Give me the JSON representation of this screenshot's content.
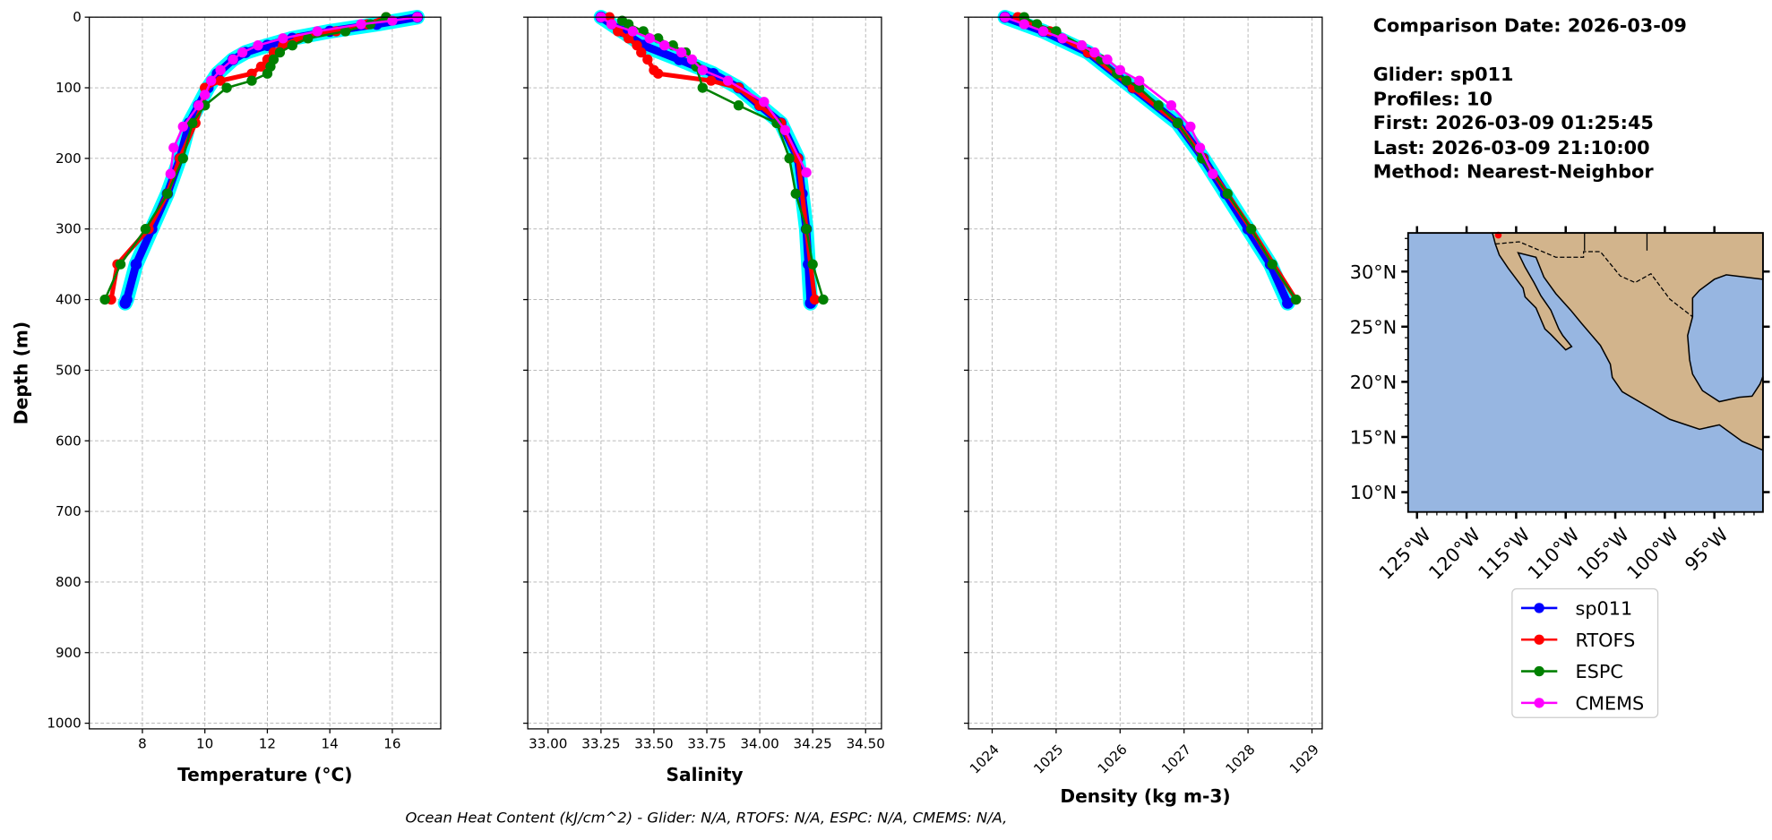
{
  "info": {
    "comparison_date": "Comparison Date: 2026-03-09",
    "glider": "Glider: sp011",
    "profiles": "Profiles: 10",
    "first": "First: 2026-03-09 01:25:45",
    "last": "Last: 2026-03-09 21:10:00",
    "method": "Method: Nearest-Neighbor"
  },
  "caption": "Ocean Heat Content (kJ/cm^2) - Glider: N/A,  RTOFS: N/A,  ESPC: N/A,  CMEMS: N/A,",
  "colors": {
    "sp011": "#0000ff",
    "RTOFS": "#ff0000",
    "ESPC": "#008000",
    "CMEMS": "#ff00ff",
    "glider_profiles": "#00ffff",
    "land": "#d2b48c",
    "ocean": "#97b6e1"
  },
  "legend": [
    "sp011",
    "RTOFS",
    "ESPC",
    "CMEMS"
  ],
  "chart_data": [
    {
      "type": "line",
      "id": "temperature",
      "xlabel": "Temperature (°C)",
      "ylabel": "Depth (m)",
      "xlim": [
        6.3,
        17.55
      ],
      "ylim": [
        1008,
        0
      ],
      "xticks": [
        8,
        10,
        12,
        14,
        16
      ],
      "yticks": [
        0,
        100,
        200,
        300,
        400,
        500,
        600,
        700,
        800,
        900,
        1000
      ],
      "grid": true,
      "series": [
        {
          "name": "sp011",
          "depth": [
            0,
            10,
            20,
            30,
            40,
            50,
            60,
            80,
            100,
            125,
            150,
            200,
            250,
            300,
            350,
            400,
            405
          ],
          "values": [
            16.8,
            15.5,
            14,
            12.8,
            12,
            11.3,
            10.9,
            10.4,
            10.1,
            9.8,
            9.5,
            9.2,
            8.8,
            8.3,
            7.8,
            7.5,
            7.45
          ]
        },
        {
          "name": "RTOFS",
          "depth": [
            0,
            10,
            20,
            30,
            40,
            50,
            60,
            70,
            80,
            90,
            100,
            125,
            150,
            200,
            250,
            300,
            350,
            400
          ],
          "values": [
            15.8,
            15.2,
            14.2,
            13,
            12.5,
            12.2,
            12,
            11.8,
            11.5,
            10.5,
            10,
            9.9,
            9.7,
            9.2,
            8.8,
            8.2,
            7.2,
            7.0
          ]
        },
        {
          "name": "ESPC",
          "depth": [
            0,
            10,
            20,
            30,
            40,
            50,
            60,
            70,
            80,
            90,
            100,
            125,
            150,
            200,
            250,
            300,
            350,
            400
          ],
          "values": [
            15.8,
            15.3,
            14.5,
            13.3,
            12.8,
            12.4,
            12.2,
            12.1,
            12.0,
            11.5,
            10.7,
            10.0,
            9.6,
            9.3,
            8.8,
            8.1,
            7.3,
            6.8
          ]
        },
        {
          "name": "CMEMS",
          "depth": [
            0,
            5,
            10,
            20,
            30,
            40,
            50,
            60,
            75,
            90,
            110,
            125,
            155,
            185,
            222
          ],
          "values": [
            16.8,
            16,
            15,
            13.6,
            12.5,
            11.7,
            11.2,
            10.9,
            10.5,
            10.2,
            10.0,
            9.8,
            9.3,
            9.0,
            8.9
          ]
        }
      ]
    },
    {
      "type": "line",
      "id": "salinity",
      "xlabel": "Salinity",
      "ylabel": "",
      "xlim": [
        32.904,
        34.575
      ],
      "ylim": [
        1008,
        0
      ],
      "xticks": [
        "33.00",
        "33.25",
        "33.50",
        "33.75",
        "34.00",
        "34.25",
        "34.50"
      ],
      "yticks": [
        0,
        100,
        200,
        300,
        400,
        500,
        600,
        700,
        800,
        900,
        1000
      ],
      "grid": true,
      "series": [
        {
          "name": "sp011",
          "depth": [
            0,
            20,
            40,
            60,
            80,
            100,
            125,
            150,
            200,
            250,
            300,
            350,
            405
          ],
          "values": [
            33.25,
            33.35,
            33.45,
            33.62,
            33.78,
            33.9,
            34.0,
            34.1,
            34.18,
            34.2,
            34.22,
            34.23,
            34.24
          ]
        },
        {
          "name": "RTOFS",
          "depth": [
            0,
            10,
            20,
            30,
            40,
            50,
            60,
            75,
            80,
            90,
            100,
            125,
            150,
            200,
            300,
            400
          ],
          "values": [
            33.29,
            33.3,
            33.33,
            33.38,
            33.42,
            33.44,
            33.47,
            33.5,
            33.52,
            33.77,
            33.9,
            34.0,
            34.1,
            34.18,
            34.22,
            34.26
          ]
        },
        {
          "name": "ESPC",
          "depth": [
            5,
            10,
            20,
            30,
            40,
            50,
            70,
            100,
            125,
            150,
            200,
            250,
            300,
            350,
            400
          ],
          "values": [
            33.35,
            33.38,
            33.45,
            33.52,
            33.59,
            33.65,
            33.7,
            33.73,
            33.9,
            34.08,
            34.14,
            34.17,
            34.22,
            34.25,
            34.3
          ]
        },
        {
          "name": "CMEMS",
          "depth": [
            0,
            10,
            20,
            30,
            40,
            50,
            60,
            75,
            90,
            120,
            160,
            220
          ],
          "values": [
            33.25,
            33.3,
            33.4,
            33.48,
            33.55,
            33.63,
            33.68,
            33.73,
            33.85,
            34.02,
            34.12,
            34.22
          ]
        }
      ]
    },
    {
      "type": "line",
      "id": "density",
      "xlabel": "Density (kg m-3)",
      "ylabel": "",
      "xlim": [
        1023.63,
        1029.16
      ],
      "ylim": [
        1008,
        0
      ],
      "xticks": [
        1024,
        1025,
        1026,
        1027,
        1028,
        1029
      ],
      "yticks": [
        0,
        100,
        200,
        300,
        400,
        500,
        600,
        700,
        800,
        900,
        1000
      ],
      "grid": true,
      "series": [
        {
          "name": "sp011",
          "depth": [
            0,
            20,
            50,
            100,
            150,
            200,
            250,
            300,
            350,
            405
          ],
          "values": [
            1024.2,
            1024.8,
            1025.5,
            1026.2,
            1026.9,
            1027.3,
            1027.65,
            1028.0,
            1028.35,
            1028.62
          ]
        },
        {
          "name": "RTOFS",
          "depth": [
            0,
            20,
            50,
            100,
            150,
            200,
            300,
            400
          ],
          "values": [
            1024.4,
            1024.9,
            1025.5,
            1026.2,
            1026.9,
            1027.3,
            1028.05,
            1028.75
          ]
        },
        {
          "name": "ESPC",
          "depth": [
            0,
            10,
            20,
            40,
            60,
            80,
            90,
            100,
            125,
            150,
            200,
            250,
            300,
            350,
            400
          ],
          "values": [
            1024.5,
            1024.7,
            1025.0,
            1025.4,
            1025.7,
            1025.95,
            1026.1,
            1026.3,
            1026.6,
            1026.9,
            1027.28,
            1027.68,
            1028.05,
            1028.38,
            1028.75
          ]
        },
        {
          "name": "CMEMS",
          "depth": [
            0,
            10,
            20,
            30,
            40,
            50,
            60,
            75,
            90,
            125,
            155,
            185,
            222
          ],
          "values": [
            1024.2,
            1024.5,
            1024.8,
            1025.1,
            1025.4,
            1025.6,
            1025.8,
            1026.0,
            1026.3,
            1026.8,
            1027.1,
            1027.25,
            1027.45
          ]
        }
      ]
    }
  ],
  "map": {
    "lon_range": [
      -125.9,
      -90.1
    ],
    "lat_range": [
      8.2,
      33.5
    ],
    "lat_ticks": [
      10,
      15,
      20,
      25,
      30
    ],
    "lat_labels": [
      "10°N",
      "15°N",
      "20°N",
      "25°N",
      "30°N"
    ],
    "lon_ticks": [
      -125,
      -120,
      -115,
      -110,
      -105,
      -100,
      -95
    ],
    "lon_labels": [
      "125°W",
      "120°W",
      "115°W",
      "110°W",
      "105°W",
      "100°W",
      "95°W"
    ],
    "glider_position": {
      "lon": -116.8,
      "lat": 33.3
    }
  }
}
